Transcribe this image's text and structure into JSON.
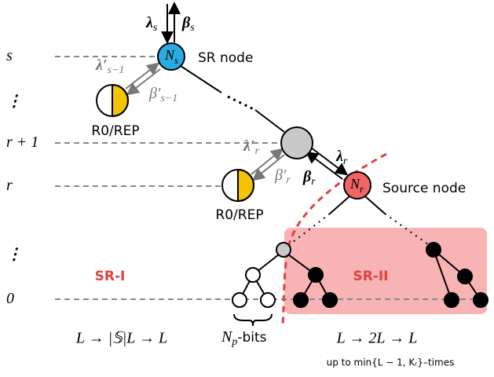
{
  "levels": [
    {
      "main": "s"
    },
    {
      "main": "⋮"
    },
    {
      "main": "r + 1"
    },
    {
      "main": "r"
    },
    {
      "main": "⋮"
    },
    {
      "main": "0"
    }
  ],
  "top_arrows": {
    "down": {
      "main": "λ",
      "sub": "s"
    },
    "up": {
      "main": "β",
      "sub": "s"
    }
  },
  "sr_node": {
    "symbol": {
      "main": "N",
      "sub": "s"
    },
    "label": "SR node"
  },
  "upper_rep": {
    "label": "R0/REP",
    "down": {
      "main": "λ′",
      "sub": "s−1"
    },
    "up": {
      "main": "β′",
      "sub": "s−1"
    }
  },
  "lower_rep": {
    "label": "R0/REP",
    "down": {
      "main": "λ′",
      "sub": "r"
    },
    "up": {
      "main": "β′",
      "sub": "r"
    }
  },
  "source_link": {
    "down": {
      "main": "λ",
      "sub": "r"
    },
    "up": {
      "main": "β",
      "sub": "r"
    }
  },
  "source_node": {
    "symbol": {
      "main": "N",
      "sub": "r"
    },
    "label": "Source node"
  },
  "regions": {
    "left": "SR-I",
    "right": "SR-II"
  },
  "bottom": {
    "left": "L → |𝕊|L → L",
    "middle": {
      "main": "N",
      "sub": "p",
      "after": "-bits"
    },
    "right": "L → 2L → L",
    "note": "up to min{L − 1, Kᵣ}–times"
  }
}
